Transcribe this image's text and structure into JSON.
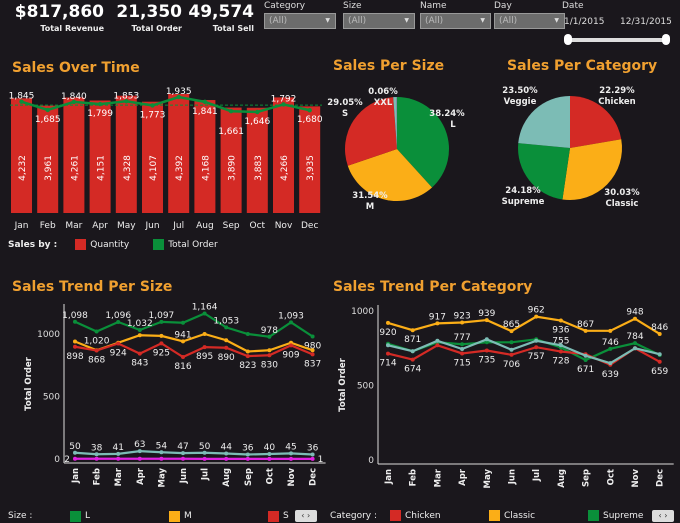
{
  "kpis": [
    {
      "value": "$817,860",
      "label": "Total Revenue"
    },
    {
      "value": "21,350",
      "label": "Total Order"
    },
    {
      "value": "49,574",
      "label": "Total Sell"
    }
  ],
  "filters": [
    {
      "label": "Category",
      "value": "(All)"
    },
    {
      "label": "Size",
      "value": "(All)"
    },
    {
      "label": "Name",
      "value": "(All)"
    },
    {
      "label": "Day",
      "value": "(All)"
    }
  ],
  "date": {
    "label": "Date",
    "start": "1/1/2015",
    "end": "12/31/2015"
  },
  "colors": {
    "accent": "#f0a030",
    "red": "#d42a25",
    "green": "#0a8f3a",
    "orange": "#fbae17",
    "teal": "#7cbcb5",
    "purple": "#c43bd0",
    "magenta": "#e020e0"
  },
  "titles": {
    "over_time": "Sales Over Time",
    "per_size": "Sales Per Size",
    "per_category": "Sales Per Category",
    "trend_size": "Sales Trend Per Size",
    "trend_category": "Sales Trend Per Category"
  },
  "legend_over_time": {
    "label": "Sales by :",
    "items": [
      "Quantity",
      "Total Order"
    ]
  },
  "legend_size": {
    "label": "Size :",
    "items": [
      "L",
      "M",
      "S"
    ]
  },
  "legend_category": {
    "label": "Category :",
    "items": [
      "Chicken",
      "Classic",
      "Supreme"
    ]
  },
  "chart_data": [
    {
      "type": "bar",
      "title": "Sales Over Time",
      "categories": [
        "Jan",
        "Feb",
        "Mar",
        "Apr",
        "May",
        "Jun",
        "Jul",
        "Aug",
        "Sep",
        "Oct",
        "Nov",
        "Dec"
      ],
      "series": [
        {
          "name": "Quantity",
          "type": "bar",
          "values": [
            4232,
            3961,
            4261,
            4151,
            4328,
            4107,
            4392,
            4168,
            3890,
            3883,
            4266,
            3935
          ]
        },
        {
          "name": "Total Order",
          "type": "line",
          "values": [
            1845,
            1685,
            1840,
            1799,
            1853,
            1773,
            1935,
            1841,
            1661,
            1646,
            1792,
            1680
          ]
        }
      ],
      "reference_line": "average (dashed)"
    },
    {
      "type": "pie",
      "title": "Sales Per Size",
      "slices": [
        {
          "label": "L",
          "value": 38.24,
          "text": "38.24%"
        },
        {
          "label": "M",
          "value": 31.54,
          "text": "31.54%"
        },
        {
          "label": "S",
          "value": 29.05,
          "text": "29.05%"
        },
        {
          "label": "",
          "value": 1.11,
          "text": ""
        },
        {
          "label": "XXL",
          "value": 0.06,
          "text": "0.06%"
        }
      ]
    },
    {
      "type": "pie",
      "title": "Sales Per Category",
      "slices": [
        {
          "label": "Chicken",
          "value": 22.29,
          "text": "22.29%"
        },
        {
          "label": "Classic",
          "value": 30.03,
          "text": "30.03%"
        },
        {
          "label": "Supreme",
          "value": 24.18,
          "text": "24.18%"
        },
        {
          "label": "Veggie",
          "value": 23.5,
          "text": "23.50%"
        }
      ]
    },
    {
      "type": "line",
      "title": "Sales Trend Per Size",
      "ylabel": "Total Order",
      "ylim": [
        0,
        1200
      ],
      "yticks": [
        0,
        500,
        1000
      ],
      "categories": [
        "Jan",
        "Feb",
        "Mar",
        "Apr",
        "May",
        "Jun",
        "Jul",
        "Aug",
        "Sep",
        "Oct",
        "Nov",
        "Dec"
      ],
      "series": [
        {
          "name": "L",
          "values": [
            1098,
            1020,
            1096,
            1032,
            1097,
            1090,
            1164,
            1053,
            1000,
            978,
            1093,
            980
          ]
        },
        {
          "name": "M",
          "values": [
            940,
            870,
            930,
            990,
            985,
            941,
            1000,
            950,
            860,
            870,
            930,
            870
          ]
        },
        {
          "name": "S",
          "values": [
            898,
            868,
            924,
            843,
            925,
            816,
            895,
            890,
            823,
            830,
            909,
            837
          ]
        },
        {
          "values": [
            50,
            38,
            41,
            63,
            54,
            47,
            50,
            44,
            36,
            40,
            45,
            36
          ]
        },
        {
          "values": [
            2,
            2,
            2,
            2,
            2,
            2,
            1,
            1,
            1,
            1,
            1,
            1
          ]
        }
      ]
    },
    {
      "type": "line",
      "title": "Sales Trend Per Category",
      "ylabel": "Total Order",
      "ylim": [
        0,
        1000
      ],
      "yticks": [
        0,
        500,
        1000
      ],
      "categories": [
        "Jan",
        "Feb",
        "Mar",
        "Apr",
        "May",
        "Jun",
        "Jul",
        "Aug",
        "Sep",
        "Oct",
        "Nov",
        "Dec"
      ],
      "series": [
        {
          "name": "Classic",
          "values": [
            920,
            871,
            917,
            923,
            939,
            865,
            962,
            936,
            867,
            867,
            948,
            846
          ]
        },
        {
          "name": "Supreme",
          "values": [
            780,
            730,
            790,
            777,
            790,
            790,
            810,
            755,
            671,
            746,
            784,
            705
          ]
        },
        {
          "name": "Chicken",
          "values": [
            714,
            674,
            770,
            715,
            735,
            706,
            757,
            728,
            710,
            639,
            750,
            659
          ]
        },
        {
          "values": [
            770,
            730,
            800,
            745,
            810,
            740,
            800,
            770,
            700,
            650,
            750,
            710
          ]
        }
      ]
    }
  ]
}
